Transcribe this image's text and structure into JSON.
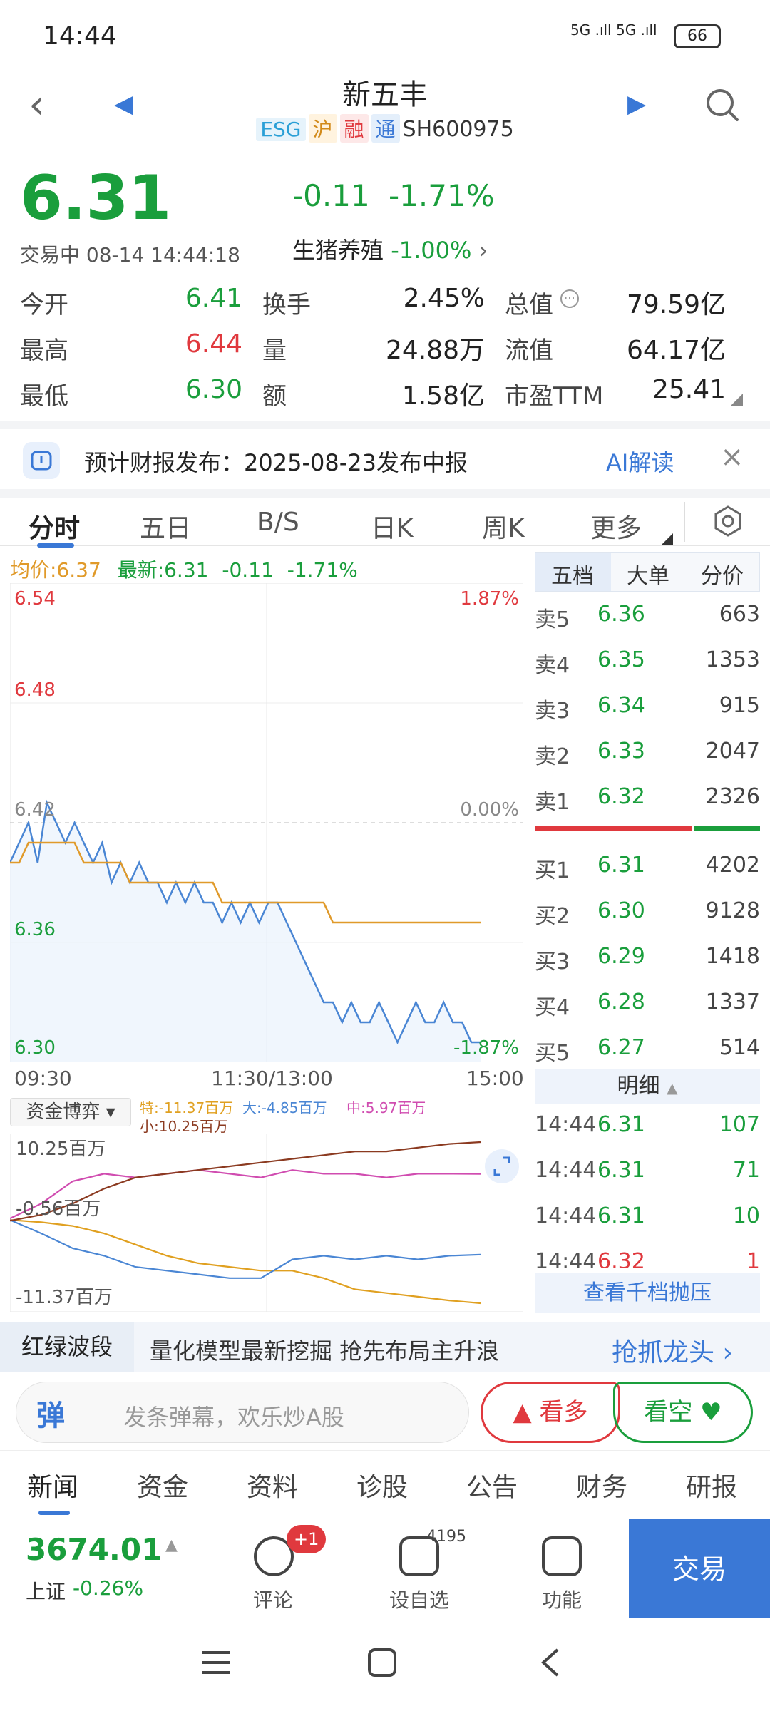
{
  "status_bar": {
    "time": "14:44",
    "signal": "5G .ıll 5G .ıll",
    "battery": "66"
  },
  "header": {
    "stock_name": "新五丰",
    "tags": [
      "ESG",
      "沪",
      "融",
      "通"
    ],
    "code": "SH600975"
  },
  "quote": {
    "price": "6.31",
    "change": "-0.11",
    "change_pct": "-1.71%",
    "status": "交易中 08-14 14:44:18",
    "sector_name": "生猪养殖",
    "sector_change": "-1.00%"
  },
  "metrics": [
    {
      "label": "今开",
      "value": "6.41",
      "color": "#1a9e3c"
    },
    {
      "label": "换手",
      "value": "2.45%",
      "color": "#222222"
    },
    {
      "label": "总值",
      "value": "79.59亿",
      "color": "#222222"
    },
    {
      "label": "最高",
      "value": "6.44",
      "color": "#e0393e"
    },
    {
      "label": "量",
      "value": "24.88万",
      "color": "#222222"
    },
    {
      "label": "流值",
      "value": "64.17亿",
      "color": "#222222"
    },
    {
      "label": "最低",
      "value": "6.30",
      "color": "#1a9e3c"
    },
    {
      "label": "额",
      "value": "1.58亿",
      "color": "#222222"
    },
    {
      "label": "市盈TTM",
      "value": "25.41",
      "color": "#222222"
    }
  ],
  "report_banner": {
    "text": "预计财报发布：2025-08-23发布中报",
    "ai_label": "AI解读"
  },
  "chart_tabs": [
    "分时",
    "五日",
    "B/S",
    "日K",
    "周K",
    "更多"
  ],
  "intraday": {
    "avg_label": "均价:6.37",
    "latest_label": "最新:6.31",
    "change": "-0.11",
    "change_pct": "-1.71%",
    "price_ticks": [
      "6.54",
      "6.48",
      "6.42",
      "6.36",
      "6.30"
    ],
    "pct_ticks": [
      "1.87%",
      "0.00%",
      "-1.87%"
    ],
    "time_ticks": [
      "09:30",
      "11:30/13:00",
      "15:00"
    ]
  },
  "chart_data": [
    {
      "type": "line",
      "title": "",
      "x_ticks": [
        "09:30",
        "11:30/13:00",
        "15:00"
      ],
      "ylim": [
        6.3,
        6.54
      ],
      "prev_close": 6.42,
      "series": [
        {
          "color": "#4a86d4",
          "values": [
            6.4,
            6.41,
            6.42,
            6.4,
            6.43,
            6.42,
            6.41,
            6.42,
            6.41,
            6.4,
            6.41,
            6.39,
            6.4,
            6.39,
            6.4,
            6.39,
            6.39,
            6.38,
            6.39,
            6.38,
            6.39,
            6.38,
            6.38,
            6.37,
            6.38,
            6.37,
            6.38,
            6.37,
            6.38,
            6.38,
            6.37,
            6.36,
            6.35,
            6.34,
            6.33,
            6.33,
            6.32,
            6.33,
            6.32,
            6.32,
            6.33,
            6.32,
            6.31,
            6.32,
            6.33,
            6.32,
            6.32,
            6.33,
            6.32,
            6.32,
            6.31,
            6.31
          ]
        },
        {
          "color": "#e09a2a",
          "values": [
            6.4,
            6.4,
            6.41,
            6.41,
            6.41,
            6.41,
            6.41,
            6.41,
            6.4,
            6.4,
            6.4,
            6.4,
            6.4,
            6.39,
            6.39,
            6.39,
            6.39,
            6.39,
            6.39,
            6.39,
            6.39,
            6.39,
            6.39,
            6.38,
            6.38,
            6.38,
            6.38,
            6.38,
            6.38,
            6.38,
            6.38,
            6.38,
            6.38,
            6.38,
            6.38,
            6.37,
            6.37,
            6.37,
            6.37,
            6.37,
            6.37,
            6.37,
            6.37,
            6.37,
            6.37,
            6.37,
            6.37,
            6.37,
            6.37,
            6.37,
            6.37,
            6.37
          ]
        }
      ]
    },
    {
      "type": "line",
      "title": "",
      "ylabels": [
        "10.25百万",
        "-0.56百万",
        "-11.37百万"
      ],
      "ylim": [
        -11.37,
        10.25
      ],
      "series": [
        {
          "name": "特",
          "color": "#e0a020",
          "values": [
            -0.2,
            -0.5,
            -1.0,
            -2.0,
            -3.5,
            -5.0,
            -6.0,
            -6.5,
            -7.0,
            -7.0,
            -8.0,
            -9.5,
            -10.0,
            -10.5,
            -11.0,
            -11.37
          ]
        },
        {
          "name": "大",
          "color": "#4a86d4",
          "values": [
            -0.2,
            -2.0,
            -4.0,
            -5.0,
            -6.5,
            -7.0,
            -7.5,
            -8.0,
            -8.0,
            -5.5,
            -5.0,
            -5.5,
            -5.0,
            -5.5,
            -5.0,
            -4.85
          ]
        },
        {
          "name": "中",
          "color": "#d04cb0",
          "values": [
            0.0,
            2.0,
            5.0,
            6.0,
            5.5,
            6.0,
            6.5,
            6.0,
            5.5,
            6.5,
            6.0,
            6.0,
            5.5,
            6.0,
            6.0,
            5.97
          ]
        },
        {
          "name": "小",
          "color": "#8b3a20",
          "values": [
            -0.3,
            0.5,
            2.0,
            4.0,
            5.5,
            6.0,
            6.5,
            7.0,
            7.5,
            8.0,
            8.5,
            9.0,
            9.0,
            9.5,
            10.0,
            10.25
          ]
        }
      ]
    }
  ],
  "capital": {
    "select_label": "资金博弈",
    "legend": [
      "特:-11.37百万",
      "大:-4.85百万",
      "中:5.97百万",
      "小:10.25百万"
    ],
    "ylabels": [
      "10.25百万",
      "-0.56百万",
      "-11.37百万"
    ]
  },
  "order_book": {
    "tabs": [
      "五档",
      "大单",
      "分价"
    ],
    "asks": [
      {
        "label": "卖5",
        "price": "6.36",
        "vol": "663"
      },
      {
        "label": "卖4",
        "price": "6.35",
        "vol": "1353"
      },
      {
        "label": "卖3",
        "price": "6.34",
        "vol": "915"
      },
      {
        "label": "卖2",
        "price": "6.33",
        "vol": "2047"
      },
      {
        "label": "卖1",
        "price": "6.32",
        "vol": "2326"
      }
    ],
    "bids": [
      {
        "label": "买1",
        "price": "6.31",
        "vol": "4202"
      },
      {
        "label": "买2",
        "price": "6.30",
        "vol": "9128"
      },
      {
        "label": "买3",
        "price": "6.29",
        "vol": "1418"
      },
      {
        "label": "买4",
        "price": "6.28",
        "vol": "1337"
      },
      {
        "label": "买5",
        "price": "6.27",
        "vol": "514"
      }
    ],
    "detail_header": "明细",
    "details": [
      {
        "time": "14:44",
        "price": "6.31",
        "vol": "107"
      },
      {
        "time": "14:44",
        "price": "6.31",
        "vol": "71"
      },
      {
        "time": "14:44",
        "price": "6.31",
        "vol": "10"
      },
      {
        "time": "14:44",
        "price": "6.32",
        "vol": "1"
      }
    ],
    "view_depth": "查看千档抛压"
  },
  "ad": {
    "label": "红绿波段",
    "text": "量化模型最新挖掘 抢先布局主升浪",
    "cta": "抢抓龙头"
  },
  "comment_bar": {
    "icon_text": "弹",
    "placeholder": "发条弹幕，欢乐炒A股",
    "bull": "看多",
    "bear": "看空"
  },
  "news_tabs": [
    "新闻",
    "资金",
    "资料",
    "诊股",
    "公告",
    "财务",
    "研报"
  ],
  "bottom_bar": {
    "index_value": "3674.01",
    "index_name": "上证",
    "index_change": "-0.26%",
    "comment_label": "评论",
    "comment_badge": "+1",
    "watch_label": "设自选",
    "watch_count": "4195",
    "func_label": "功能",
    "trade_label": "交易"
  }
}
